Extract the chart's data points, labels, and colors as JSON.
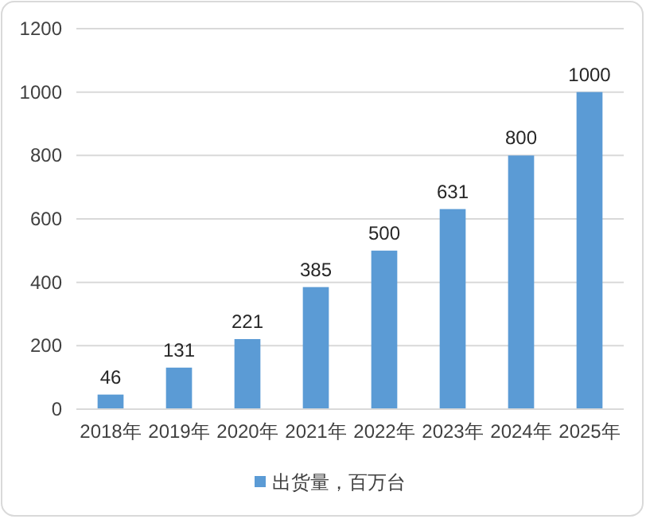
{
  "chart_data": {
    "type": "bar",
    "categories": [
      "2018年",
      "2019年",
      "2020年",
      "2021年",
      "2022年",
      "2023年",
      "2024年",
      "2025年"
    ],
    "series": [
      {
        "name": "出货量，百万台",
        "color": "#5b9bd5",
        "values": [
          46,
          131,
          221,
          385,
          500,
          631,
          800,
          1000
        ]
      }
    ],
    "ylim": [
      0,
      1200
    ],
    "yticks": [
      0,
      200,
      400,
      600,
      800,
      1000,
      1200
    ],
    "grid": "y",
    "data_labels": true,
    "legend": "bottom"
  }
}
